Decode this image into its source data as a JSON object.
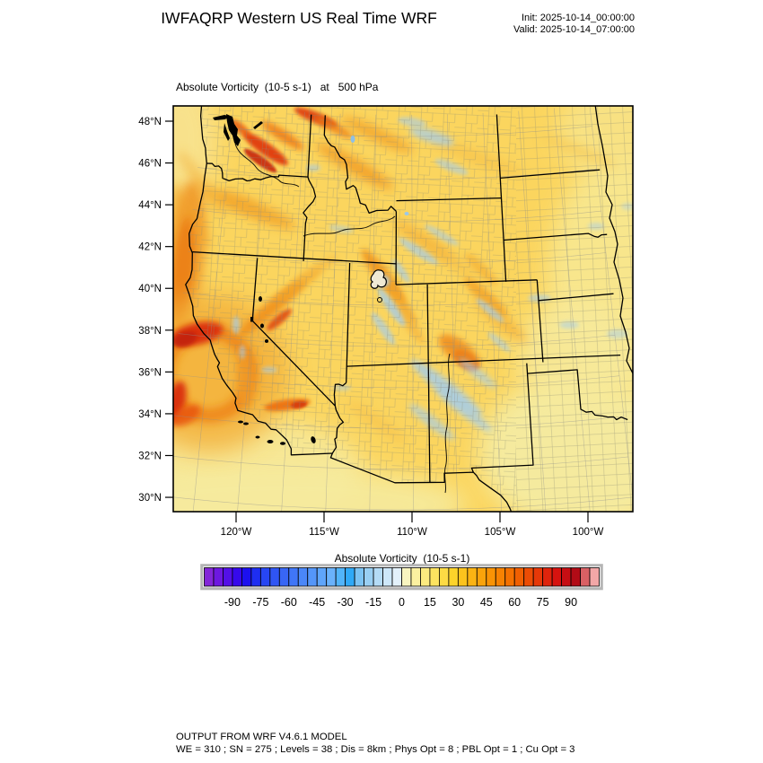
{
  "header": {
    "title": "IWFAQRP Western US Real Time WRF",
    "init_label": "Init: 2025-10-14_00:00:00",
    "valid_label": "Valid: 2025-10-14_07:00:00"
  },
  "plot": {
    "subtitle": "Absolute Vorticity  (10-5 s-1)   at   500 hPa"
  },
  "footer": {
    "line1": "OUTPUT FROM WRF V4.6.1 MODEL",
    "line2": "WE = 310 ; SN = 275 ; Levels = 38 ; Dis = 8km ; Phys Opt = 8 ; PBL Opt = 1 ; Cu Opt = 3"
  },
  "chart_data": {
    "type": "heatmap",
    "title": "IWFAQRP Western US Real Time WRF",
    "field": "Absolute Vorticity",
    "units": "10-5 s-1",
    "level": "500 hPa",
    "init_time": "2025-10-14_00:00:00",
    "valid_time": "2025-10-14_07:00:00",
    "region": "Western United States",
    "projection": "Lambert conformal (WRF model grid)",
    "lon_extent": [
      -123.6,
      -97.4
    ],
    "lat_extent": [
      29.3,
      48.9
    ],
    "x_ticks": {
      "values": [
        -120,
        -115,
        -110,
        -105,
        -100
      ],
      "labels": [
        "120°W",
        "115°W",
        "110°W",
        "105°W",
        "100°W"
      ]
    },
    "y_ticks": {
      "values": [
        48,
        46,
        44,
        42,
        40,
        38,
        36,
        34,
        32,
        30
      ],
      "labels": [
        "48°N",
        "46°N",
        "44°N",
        "42°N",
        "40°N",
        "38°N",
        "36°N",
        "34°N",
        "32°N",
        "30°N"
      ]
    },
    "colorbar": {
      "title": "Absolute Vorticity  (10-5 s-1)",
      "cell_min": -105,
      "cell_size": 5,
      "n_cells": 42,
      "tick_values": [
        -90,
        -75,
        -60,
        -45,
        -30,
        -15,
        0,
        15,
        30,
        45,
        60,
        75,
        90
      ],
      "tick_labels": [
        "-90",
        "-75",
        "-60",
        "-45",
        "-30",
        "-15",
        "0",
        "15",
        "30",
        "45",
        "60",
        "75",
        "90"
      ],
      "colors": [
        "#8326d8",
        "#6d18e0",
        "#5310e7",
        "#3609ec",
        "#1c10ef",
        "#1e2ef1",
        "#2746f3",
        "#2f55f4",
        "#3866f5",
        "#4076f7",
        "#4a87f8",
        "#5496f9",
        "#5fa5fa",
        "#6ab2fb",
        "#51b4fa",
        "#2fa9f7",
        "#7cc3f3",
        "#99cff3",
        "#b4dbf6",
        "#cde7f9",
        "#e3f1fb",
        "#f8f5c0",
        "#fbf0a0",
        "#fcea80",
        "#fde360",
        "#fddb44",
        "#fdd32a",
        "#fcc31d",
        "#fbb313",
        "#faa30b",
        "#f99305",
        "#f78202",
        "#f47101",
        "#f05f02",
        "#ec4c05",
        "#e63808",
        "#df240c",
        "#d6130f",
        "#c60e13",
        "#b20b16",
        "#d96064",
        "#f2a7a7"
      ]
    },
    "features": [
      "Ring-shaped vorticity maximum (cutoff low) off the central California coast near 36N 123W, peak values 60-90",
      "Red high-vorticity streaks over the Washington Cascades and northern Idaho / northwest Montana, values 45-75",
      "Orange band of enhanced vorticity along the Oregon coast offshore",
      "NE-SW oriented orange/blue mountain-wave streaks over Nevada, Utah, Wyoming and Colorado",
      "Localized red maximum over the San Juan mountains near the Colorado / New Mexico border",
      "Light-blue negative-vorticity streaks across central New Mexico and central Utah",
      "Background field mostly 10-25 (yellow-gold); pale yellow 0-10 over the southern ocean, Texas and the eastern plains"
    ]
  }
}
